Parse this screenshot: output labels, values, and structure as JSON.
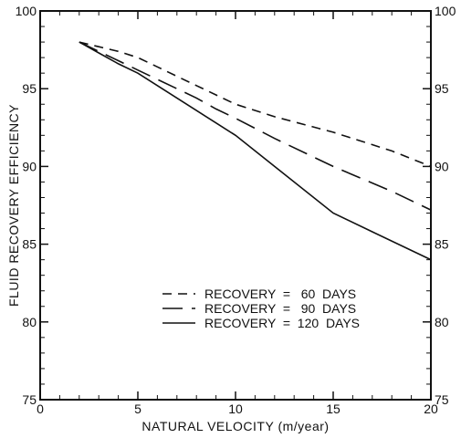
{
  "chart_data": {
    "type": "line",
    "xlabel": "NATURAL VELOCITY (m/year)",
    "ylabel": "FLUID RECOVERY EFFICIENCY",
    "xlim": [
      0,
      20
    ],
    "ylim": [
      75,
      100
    ],
    "xticks": [
      "0",
      "5",
      "10",
      "15",
      "20"
    ],
    "yticks": [
      "75",
      "80",
      "85",
      "90",
      "95",
      "100"
    ],
    "yticks_right": [
      "75",
      "80",
      "85",
      "90",
      "95",
      "100"
    ],
    "grid": false,
    "legend_position": "lower-right",
    "series": [
      {
        "name": "RECOVERY  =   60  DAYS",
        "style": "short-dash",
        "x": [
          2,
          3,
          4,
          5,
          6,
          7,
          8,
          9,
          10,
          12,
          15,
          18,
          20
        ],
        "y": [
          98,
          97.7,
          97.4,
          97,
          96.4,
          95.8,
          95.2,
          94.6,
          94.0,
          93.2,
          92.2,
          91.0,
          90.0
        ]
      },
      {
        "name": "RECOVERY  =   90  DAYS",
        "style": "long-dash",
        "x": [
          2,
          3,
          4,
          5,
          6,
          7,
          8,
          9,
          10,
          12,
          15,
          18,
          20
        ],
        "y": [
          98,
          97.4,
          96.8,
          96.2,
          95.6,
          95.0,
          94.4,
          93.7,
          93.1,
          91.8,
          90.0,
          88.4,
          87.2
        ]
      },
      {
        "name": "RECOVERY  =  120  DAYS",
        "style": "solid",
        "x": [
          2,
          3,
          4,
          5,
          6,
          7,
          8,
          9,
          10,
          12,
          15,
          17,
          20
        ],
        "y": [
          98,
          97.3,
          96.6,
          96.0,
          95.2,
          94.4,
          93.6,
          92.8,
          92.0,
          90.0,
          87.0,
          85.8,
          84.0
        ]
      }
    ]
  }
}
